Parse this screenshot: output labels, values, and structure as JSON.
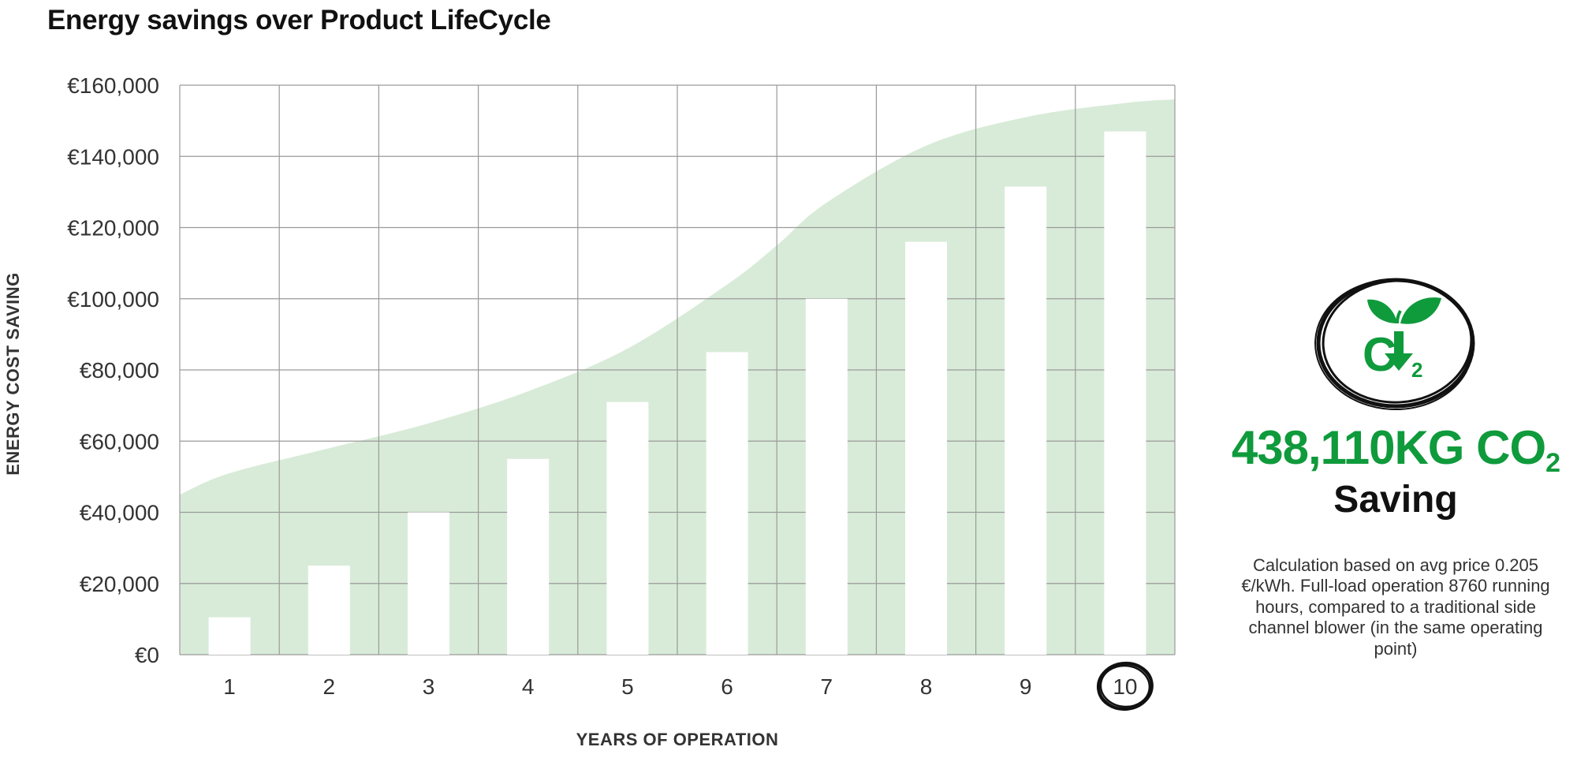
{
  "chart_data": {
    "type": "bar",
    "title": "Energy savings over Product LifeCycle",
    "xlabel": "YEARS OF OPERATION",
    "ylabel": "ENERGY COST SAVING",
    "categories": [
      "1",
      "2",
      "3",
      "4",
      "5",
      "6",
      "7",
      "8",
      "9",
      "10"
    ],
    "values": [
      10500,
      25000,
      40000,
      55000,
      71000,
      85000,
      100000,
      116000,
      131500,
      147000
    ],
    "ylim": [
      0,
      160000
    ],
    "yticks": [
      0,
      20000,
      40000,
      60000,
      80000,
      100000,
      120000,
      140000,
      160000
    ],
    "ytick_labels": [
      "€0",
      "€20,000",
      "€40,000",
      "€60,000",
      "€80,000",
      "€100,000",
      "€120,000",
      "€140,000",
      "€160,000"
    ],
    "background_area": {
      "x": [
        0.5,
        1,
        2,
        3,
        4,
        5,
        6,
        6.5,
        7,
        8,
        9,
        10,
        10.5
      ],
      "values": [
        45000,
        51000,
        58000,
        65000,
        74000,
        86000,
        104000,
        115000,
        127000,
        143000,
        151000,
        155000,
        156000
      ]
    },
    "highlighted_category": "10",
    "grid": true,
    "colors": {
      "bars": "#ffffff",
      "area": "#d8ebd8",
      "grid": "#9a9a9a",
      "accent": "#0f9a3c"
    }
  },
  "side_panel": {
    "icon": "co2-reduction-leaf-icon",
    "icon_letter": "C",
    "icon_sub": "2",
    "co2_amount": "438,110KG CO",
    "co2_sub": "2",
    "saving_label": "Saving",
    "note": "Calculation based on avg price 0.205 €/kWh. Full-load operation 8760 running hours, compared to a traditional side channel blower (in the same operating point)"
  }
}
